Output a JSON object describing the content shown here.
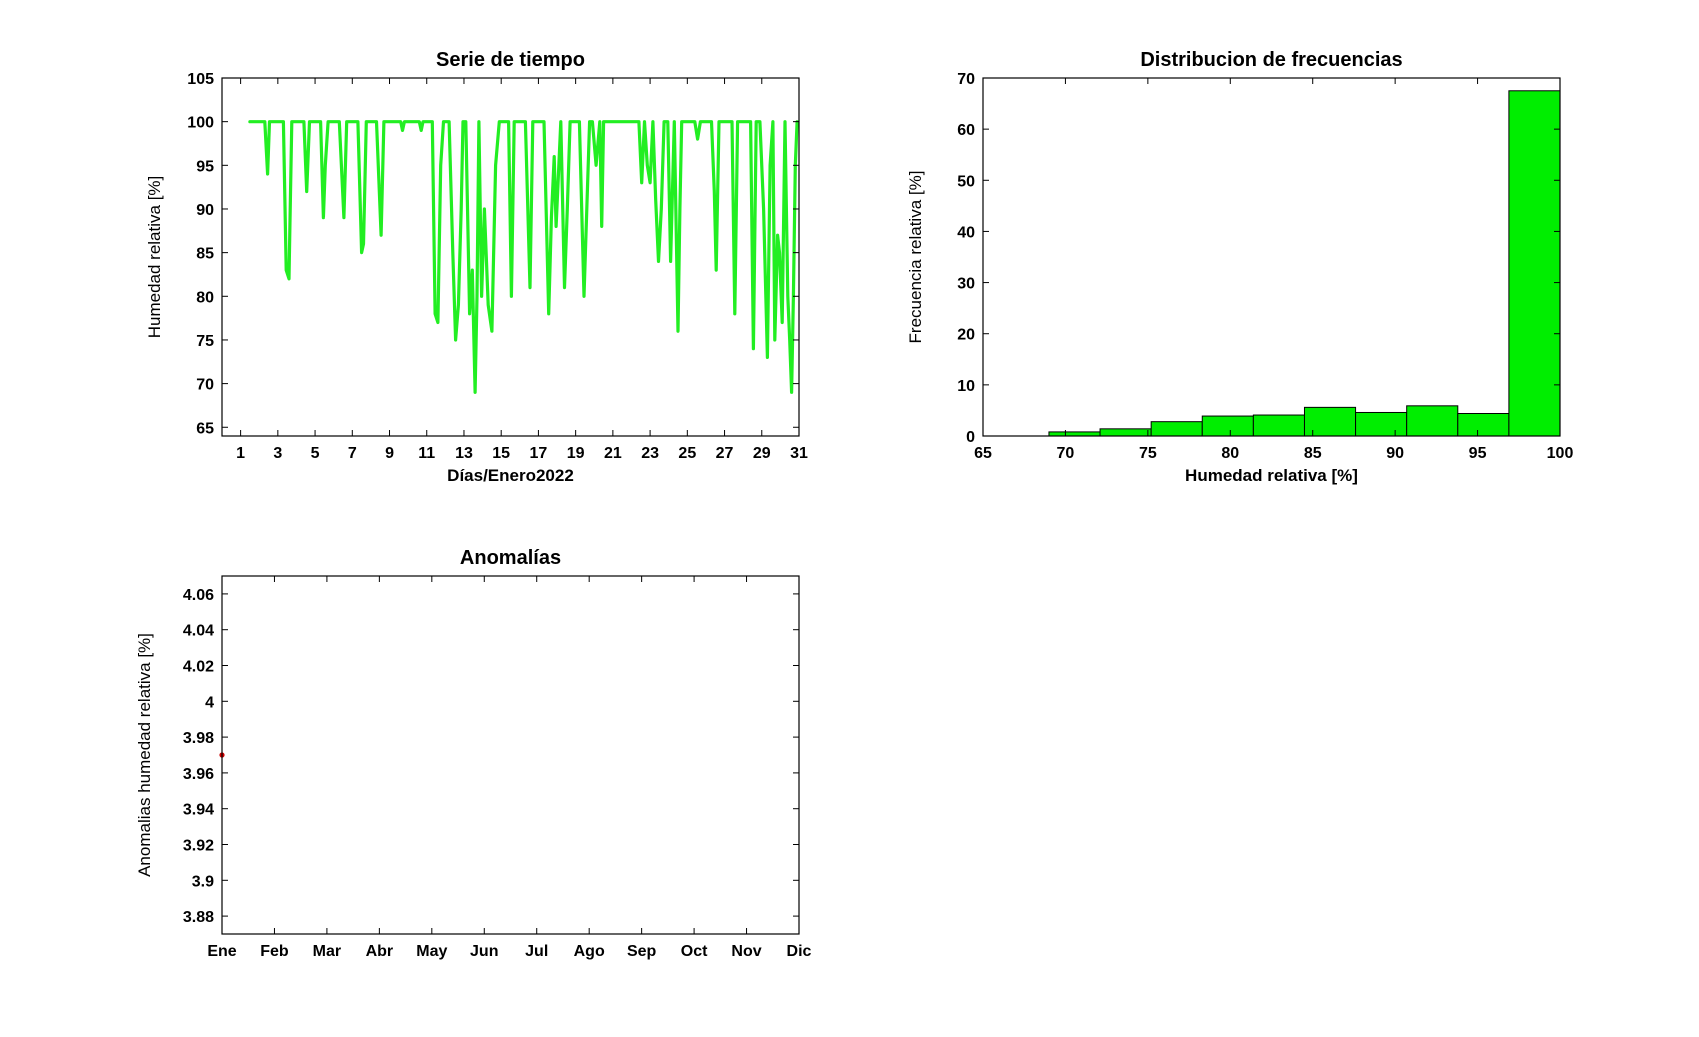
{
  "chart_data": [
    {
      "id": "serie",
      "type": "line",
      "title": "Serie de tiempo",
      "xlabel": "Días/Enero2022",
      "ylabel": "Humedad relativa [%]",
      "xlim": [
        0,
        31
      ],
      "ylim": [
        64,
        105
      ],
      "xticks": [
        1,
        3,
        5,
        7,
        9,
        11,
        13,
        15,
        17,
        19,
        21,
        23,
        25,
        27,
        29,
        31
      ],
      "yticks": [
        65,
        70,
        75,
        80,
        85,
        90,
        95,
        100,
        105
      ],
      "color": "#22ee22",
      "series": [
        {
          "x": [
            1.5,
            2.3,
            2.45,
            2.55,
            2.7,
            3.3,
            3.45,
            3.6,
            3.65,
            3.75,
            3.9,
            4.4,
            4.55,
            4.7,
            4.9,
            5.3,
            5.45,
            5.55,
            5.7,
            6.3,
            6.55,
            6.7,
            6.9,
            7.3,
            7.5,
            7.6,
            7.75,
            7.9,
            8.3,
            8.55,
            8.7,
            8.9,
            9.6,
            9.7,
            9.8,
            10.6,
            10.7,
            10.8,
            11.3,
            11.45,
            11.6,
            11.75,
            11.9,
            12.2,
            12.4,
            12.55,
            12.7,
            12.85,
            12.95,
            13.1,
            13.3,
            13.45,
            13.6,
            13.7,
            13.8,
            13.95,
            14.1,
            14.3,
            14.5,
            14.7,
            14.9,
            15.4,
            15.55,
            15.7,
            15.9,
            16.3,
            16.55,
            16.7,
            16.9,
            17.3,
            17.55,
            17.7,
            17.85,
            17.95,
            18.2,
            18.4,
            18.55,
            18.7,
            18.9,
            19.2,
            19.45,
            19.6,
            19.75,
            19.9,
            20.1,
            20.3,
            20.4,
            20.5,
            20.65,
            20.8,
            22.4,
            22.55,
            22.7,
            22.85,
            23.0,
            23.15,
            23.3,
            23.45,
            23.6,
            23.75,
            23.95,
            24.1,
            24.3,
            24.5,
            24.6,
            24.7,
            24.9,
            25.4,
            25.55,
            25.7,
            26.3,
            26.45,
            26.55,
            26.7,
            26.9,
            27.4,
            27.55,
            27.7,
            27.9,
            28.4,
            28.55,
            28.7,
            28.9,
            29.1,
            29.3,
            29.45,
            29.6,
            29.7,
            29.85,
            29.95,
            30.1,
            30.25,
            30.4,
            30.5,
            30.6,
            30.7,
            30.8,
            30.9
          ],
          "y": [
            100,
            100,
            94,
            100,
            100,
            100,
            83,
            82,
            88,
            100,
            100,
            100,
            92,
            100,
            100,
            100,
            89,
            95,
            100,
            100,
            89,
            100,
            100,
            100,
            85,
            86,
            100,
            100,
            100,
            87,
            100,
            100,
            100,
            99,
            100,
            100,
            99,
            100,
            100,
            78,
            77,
            95,
            100,
            100,
            85,
            75,
            79,
            90,
            100,
            100,
            78,
            83,
            69,
            80,
            100,
            80,
            90,
            79,
            76,
            95,
            100,
            100,
            80,
            100,
            100,
            100,
            81,
            100,
            100,
            100,
            78,
            89,
            96,
            88,
            100,
            81,
            90,
            100,
            100,
            100,
            80,
            90,
            100,
            100,
            95,
            100,
            88,
            100,
            100,
            100,
            100,
            93,
            100,
            95,
            93,
            100,
            91,
            84,
            90,
            100,
            100,
            84,
            100,
            76,
            90,
            100,
            100,
            100,
            98,
            100,
            100,
            92,
            83,
            100,
            100,
            100,
            78,
            100,
            100,
            100,
            74,
            100,
            100,
            90,
            73,
            95,
            100,
            75,
            87,
            85,
            77,
            100,
            80,
            75,
            69,
            80,
            95,
            100
          ]
        }
      ]
    },
    {
      "id": "hist",
      "type": "bar",
      "title": "Distribucion de frecuencias",
      "xlabel": "Humedad relativa [%]",
      "ylabel": "Frecuencia relativa [%]",
      "xlim": [
        65,
        100
      ],
      "ylim": [
        0,
        70
      ],
      "xticks": [
        65,
        70,
        75,
        80,
        85,
        90,
        95,
        100
      ],
      "yticks": [
        0,
        10,
        20,
        30,
        40,
        50,
        60,
        70
      ],
      "color": "#00ee00",
      "bins": [
        {
          "from": 69,
          "to": 72.1,
          "value": 0.8
        },
        {
          "from": 72.1,
          "to": 75.2,
          "value": 1.4
        },
        {
          "from": 75.2,
          "to": 78.3,
          "value": 2.8
        },
        {
          "from": 78.3,
          "to": 81.4,
          "value": 3.9
        },
        {
          "from": 81.4,
          "to": 84.5,
          "value": 4.1
        },
        {
          "from": 84.5,
          "to": 87.6,
          "value": 5.6
        },
        {
          "from": 87.6,
          "to": 90.7,
          "value": 4.6
        },
        {
          "from": 90.7,
          "to": 93.8,
          "value": 5.9
        },
        {
          "from": 93.8,
          "to": 96.9,
          "value": 4.4
        },
        {
          "from": 96.9,
          "to": 100,
          "value": 67.5
        }
      ]
    },
    {
      "id": "anom",
      "type": "scatter",
      "title": "Anomalías",
      "xlabel": "",
      "ylabel": "Anomalias humedad relativa [%]",
      "xlim": [
        0,
        11
      ],
      "ylim": [
        3.87,
        4.07
      ],
      "xticks": [
        0,
        1,
        2,
        3,
        4,
        5,
        6,
        7,
        8,
        9,
        10,
        11
      ],
      "xticklabels": [
        "Ene",
        "Feb",
        "Mar",
        "Abr",
        "May",
        "Jun",
        "Jul",
        "Ago",
        "Sep",
        "Oct",
        "Nov",
        "Dic"
      ],
      "yticks": [
        3.88,
        3.9,
        3.92,
        3.94,
        3.96,
        3.98,
        4,
        4.02,
        4.04,
        4.06
      ],
      "yticklabels": [
        "3.88",
        "3.9",
        "3.92",
        "3.94",
        "3.96",
        "3.98",
        "4",
        "4.02",
        "4.04",
        "4.06"
      ],
      "color": "#cc0000",
      "points": [
        {
          "x": 0,
          "y": 3.97
        }
      ]
    }
  ]
}
